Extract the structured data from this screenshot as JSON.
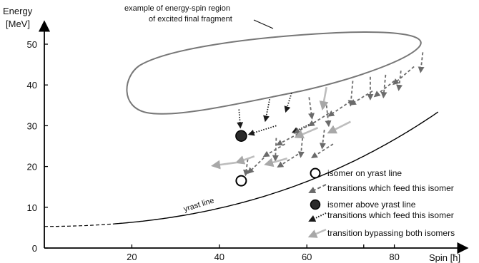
{
  "chart_data": {
    "type": "diagram",
    "xlabel": "Spin [ħ]",
    "ylabel_line1": "Energy",
    "ylabel_line2": "[MeV]",
    "xlim": [
      0,
      95
    ],
    "ylim": [
      0,
      57
    ],
    "xticks": [
      {
        "value": 20,
        "label": "20"
      },
      {
        "value": 40,
        "label": "40"
      },
      {
        "value": 60,
        "label": "60"
      },
      {
        "value": 80,
        "label": "80"
      }
    ],
    "yticks": [
      {
        "value": 0,
        "label": "0"
      },
      {
        "value": 10,
        "label": "10"
      },
      {
        "value": 20,
        "label": "20"
      },
      {
        "value": 30,
        "label": "30"
      },
      {
        "value": 40,
        "label": "40"
      },
      {
        "value": 50,
        "label": "50"
      }
    ],
    "yrast_label": "yrast line",
    "region_annotation_line1": "example of energy-spin region",
    "region_annotation_line2": "of excited final fragment",
    "isomer_yrast": {
      "spin": 45,
      "energy": 16.5
    },
    "isomer_above": {
      "spin": 45,
      "energy": 27.5
    },
    "legend": [
      {
        "key": "yrast_isomer",
        "text": "isomer on yrast line"
      },
      {
        "key": "feed_yrast",
        "text": "transitions which feed this isomer"
      },
      {
        "key": "above_isomer",
        "text": "isomer above yrast line"
      },
      {
        "key": "feed_above",
        "text": "transitions which feed this isomer"
      },
      {
        "key": "bypass",
        "text": "transition bypassing both isomers"
      }
    ],
    "colors": {
      "axis": "#000000",
      "feed_yrast": "#6b6b6b",
      "feed_above": "#1a1a1a",
      "bypass": "#bdbdbd",
      "filled_isomer": "#2a2a2a"
    }
  }
}
